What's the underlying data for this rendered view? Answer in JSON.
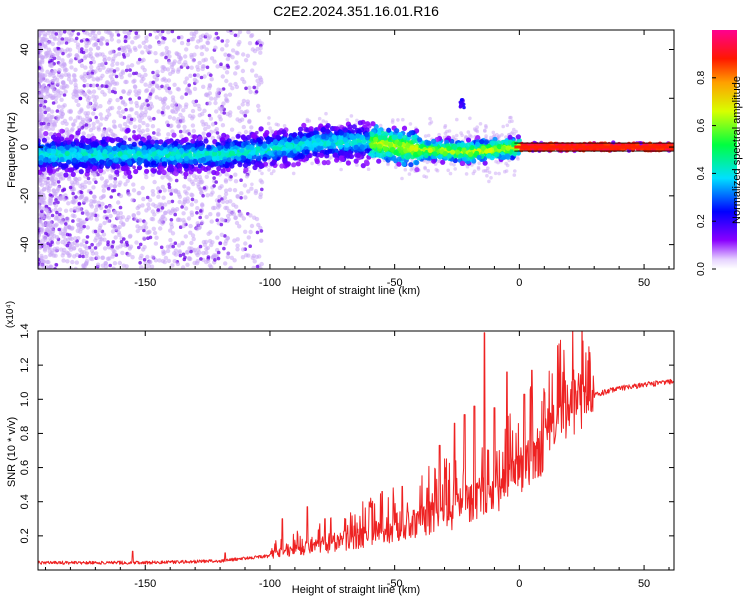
{
  "page": {
    "title": "C2E2.2024.351.16.01.R16"
  },
  "colors": {
    "signal_line": "#ee2222",
    "frame": "#000000",
    "scatter_light": "#c9a6f5",
    "scatter_dark": "#6a00e8"
  },
  "chart_data": [
    {
      "type": "heatmap",
      "name": "spectrogram",
      "xlabel": "Height of straight line (km)",
      "ylabel": "Frequency (Hz)",
      "xlim": [
        -193,
        62
      ],
      "ylim": [
        -50,
        48
      ],
      "xticks": [
        -150,
        -100,
        -50,
        0,
        50
      ],
      "xtick_labels": [
        "-150",
        "-100",
        "-50",
        "0",
        "50"
      ],
      "yticks": [
        -40,
        -20,
        0,
        20,
        40
      ],
      "ytick_labels": [
        "-40",
        "-20",
        "0",
        "20",
        "40"
      ],
      "ridge": [
        {
          "x": -190,
          "f": -3
        },
        {
          "x": -150,
          "f": -3
        },
        {
          "x": -120,
          "f": -3
        },
        {
          "x": -100,
          "f": -1
        },
        {
          "x": -80,
          "f": 2
        },
        {
          "x": -60,
          "f": 2
        },
        {
          "x": -40,
          "f": -1
        },
        {
          "x": -20,
          "f": -2
        },
        {
          "x": 0,
          "f": 0
        },
        {
          "x": 60,
          "f": 0
        }
      ],
      "feature": {
        "x": -23,
        "f": 18
      },
      "colorbar": {
        "label": "Normalized spectral amplitude",
        "range": [
          0.0,
          1.0
        ],
        "ticks": [
          0.0,
          0.2,
          0.4,
          0.6,
          0.8
        ],
        "tick_labels": [
          "0.0",
          "0.2",
          "0.4",
          "0.6",
          "0.8"
        ]
      }
    },
    {
      "type": "line",
      "name": "snr",
      "xlabel": "Height of straight line (km)",
      "ylabel": "SNR (10 * v/v)",
      "scale_label": "(x10⁴)",
      "xlim": [
        -193,
        62
      ],
      "ylim": [
        0,
        1.4
      ],
      "xticks": [
        -150,
        -100,
        -50,
        0,
        50
      ],
      "xtick_labels": [
        "-150",
        "-100",
        "-50",
        "0",
        "50"
      ],
      "yticks": [
        0.2,
        0.4,
        0.6,
        0.8,
        1.0,
        1.2,
        1.4
      ],
      "ytick_labels": [
        "0.2",
        "0.4",
        "0.6",
        "0.8",
        "1.0",
        "1.2",
        "1.4"
      ],
      "baseline": [
        {
          "x": -193,
          "y": 0.04
        },
        {
          "x": -150,
          "y": 0.04
        },
        {
          "x": -120,
          "y": 0.05
        },
        {
          "x": -100,
          "y": 0.08
        },
        {
          "x": -85,
          "y": 0.12
        },
        {
          "x": -70,
          "y": 0.15
        },
        {
          "x": -55,
          "y": 0.2
        },
        {
          "x": -40,
          "y": 0.26
        },
        {
          "x": -25,
          "y": 0.32
        },
        {
          "x": -10,
          "y": 0.42
        },
        {
          "x": 0,
          "y": 0.52
        },
        {
          "x": 10,
          "y": 0.68
        },
        {
          "x": 20,
          "y": 0.88
        },
        {
          "x": 30,
          "y": 1.02
        },
        {
          "x": 40,
          "y": 1.06
        },
        {
          "x": 50,
          "y": 1.08
        },
        {
          "x": 62,
          "y": 1.1
        }
      ],
      "spikes": [
        {
          "x": -155,
          "y": 0.11
        },
        {
          "x": -118,
          "y": 0.1
        },
        {
          "x": -95,
          "y": 0.3
        },
        {
          "x": -85,
          "y": 0.37
        },
        {
          "x": -78,
          "y": 0.3
        },
        {
          "x": -60,
          "y": 0.37
        },
        {
          "x": -55,
          "y": 0.46
        },
        {
          "x": -47,
          "y": 0.49
        },
        {
          "x": -37,
          "y": 0.48
        },
        {
          "x": -32,
          "y": 0.73
        },
        {
          "x": -26,
          "y": 0.86
        },
        {
          "x": -22,
          "y": 0.91
        },
        {
          "x": -18,
          "y": 0.96
        },
        {
          "x": -14,
          "y": 1.39
        },
        {
          "x": -10,
          "y": 0.95
        },
        {
          "x": -5,
          "y": 1.16
        },
        {
          "x": 2,
          "y": 1.03
        },
        {
          "x": 5,
          "y": 1.17
        },
        {
          "x": 10,
          "y": 1.04
        }
      ]
    }
  ]
}
